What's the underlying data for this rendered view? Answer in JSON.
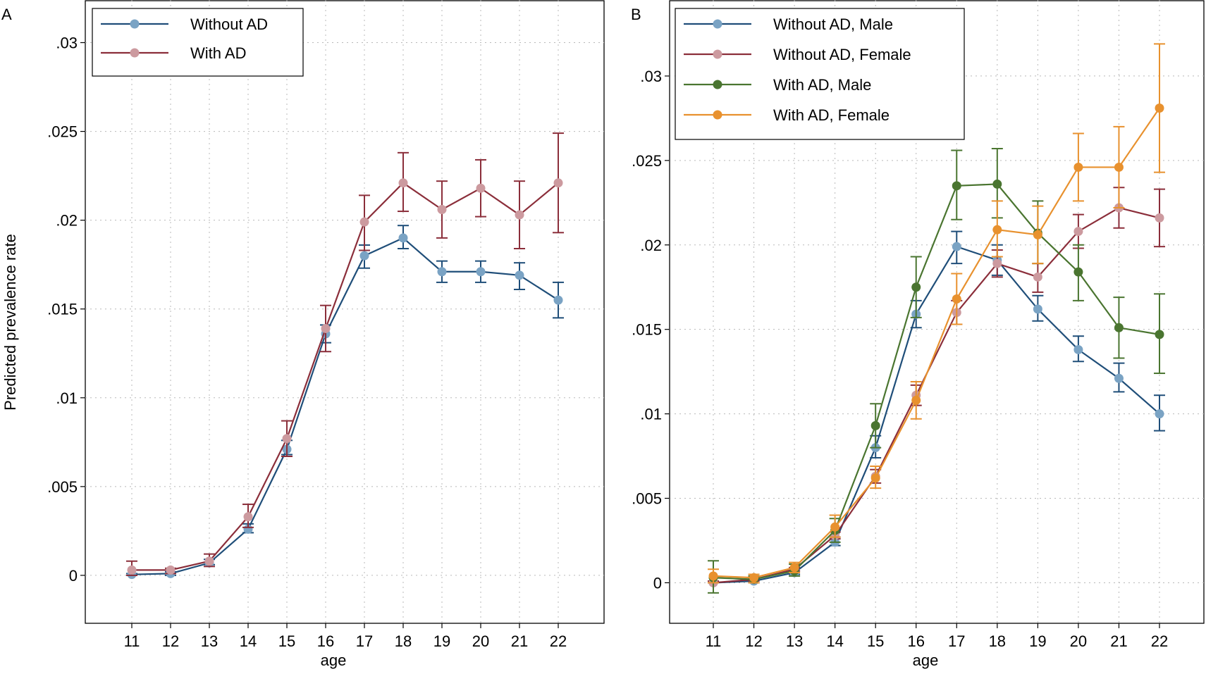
{
  "chart_data": [
    {
      "panel_label": "A",
      "type": "line",
      "xlabel": "age",
      "ylabel": "Predicted prevalence rate",
      "x": [
        11,
        12,
        13,
        14,
        15,
        16,
        17,
        18,
        19,
        20,
        21,
        22
      ],
      "xticks": [
        "11",
        "12",
        "13",
        "14",
        "15",
        "16",
        "17",
        "18",
        "19",
        "20",
        "21",
        "22"
      ],
      "yticks": [
        {
          "value": 0,
          "label": "0"
        },
        {
          "value": 0.005,
          "label": ".005"
        },
        {
          "value": 0.01,
          "label": ".01"
        },
        {
          "value": 0.015,
          "label": ".015"
        },
        {
          "value": 0.02,
          "label": ".02"
        },
        {
          "value": 0.025,
          "label": ".025"
        },
        {
          "value": 0.03,
          "label": ".03"
        }
      ],
      "ylim": [
        -0.0027,
        0.0324
      ],
      "xlim": [
        10,
        23
      ],
      "grid": true,
      "legend_position": "top-left",
      "series": [
        {
          "name": "Without AD",
          "line_color": "#1f4e79",
          "marker_color": "#7aa3c4",
          "values": [
            5e-05,
            0.0001,
            0.0007,
            0.0026,
            0.0071,
            0.0136,
            0.018,
            0.019,
            0.0171,
            0.0171,
            0.0169,
            0.0155
          ],
          "ci_low": [
            0.0,
            0.0,
            0.0006,
            0.0024,
            0.0068,
            0.0131,
            0.0173,
            0.0184,
            0.0165,
            0.0165,
            0.0161,
            0.0145
          ],
          "ci_high": [
            0.0001,
            0.0002,
            0.0009,
            0.0029,
            0.0076,
            0.0141,
            0.0186,
            0.0197,
            0.0177,
            0.0177,
            0.0176,
            0.0165
          ]
        },
        {
          "name": "With AD",
          "line_color": "#8b2e3a",
          "marker_color": "#cc9a9f",
          "values": [
            0.0003,
            0.0003,
            0.0008,
            0.0033,
            0.0077,
            0.0139,
            0.0199,
            0.0221,
            0.0206,
            0.0218,
            0.0203,
            0.0221
          ],
          "ci_low": [
            0.0,
            0.0001,
            0.0005,
            0.0027,
            0.0067,
            0.0126,
            0.0183,
            0.0205,
            0.019,
            0.0202,
            0.0184,
            0.0193
          ],
          "ci_high": [
            0.0008,
            0.0004,
            0.0012,
            0.004,
            0.0087,
            0.0152,
            0.0214,
            0.0238,
            0.0222,
            0.0234,
            0.0222,
            0.0249
          ]
        }
      ]
    },
    {
      "panel_label": "B",
      "type": "line",
      "xlabel": "age",
      "ylabel": "",
      "x": [
        11,
        12,
        13,
        14,
        15,
        16,
        17,
        18,
        19,
        20,
        21,
        22
      ],
      "xticks": [
        "11",
        "12",
        "13",
        "14",
        "15",
        "16",
        "17",
        "18",
        "19",
        "20",
        "21",
        "22"
      ],
      "yticks": [
        {
          "value": 0,
          "label": "0"
        },
        {
          "value": 0.005,
          "label": ".005"
        },
        {
          "value": 0.01,
          "label": ".01"
        },
        {
          "value": 0.015,
          "label": ".015"
        },
        {
          "value": 0.02,
          "label": ".02"
        },
        {
          "value": 0.025,
          "label": ".025"
        },
        {
          "value": 0.03,
          "label": ".03"
        }
      ],
      "ylim": [
        -0.0024,
        0.0345
      ],
      "xlim": [
        10,
        23
      ],
      "grid": true,
      "legend_position": "top-left",
      "series": [
        {
          "name": "Without AD, Male",
          "line_color": "#1f4e79",
          "marker_color": "#7aa3c4",
          "values": [
            0.0,
            0.0001,
            0.0006,
            0.0024,
            0.008,
            0.0159,
            0.0199,
            0.0191,
            0.0162,
            0.0138,
            0.0121,
            0.01
          ],
          "ci_low": [
            0.0,
            0.0,
            0.0005,
            0.0022,
            0.0074,
            0.0151,
            0.0189,
            0.0182,
            0.0155,
            0.0131,
            0.0113,
            0.009
          ],
          "ci_high": [
            0.0,
            0.0002,
            0.0007,
            0.0027,
            0.0087,
            0.0167,
            0.0208,
            0.02,
            0.017,
            0.0146,
            0.013,
            0.0111
          ]
        },
        {
          "name": "Without AD, Female",
          "line_color": "#8b2e3a",
          "marker_color": "#cc9a9f",
          "values": [
            0.0,
            0.0002,
            0.0008,
            0.0028,
            0.0063,
            0.0111,
            0.016,
            0.0189,
            0.0181,
            0.0208,
            0.0222,
            0.0216
          ],
          "ci_low": [
            0.0,
            0.0001,
            0.0007,
            0.0026,
            0.0059,
            0.0105,
            0.0153,
            0.0181,
            0.0172,
            0.0198,
            0.021,
            0.0199
          ],
          "ci_high": [
            0.0001,
            0.0003,
            0.0009,
            0.003,
            0.0067,
            0.0117,
            0.0167,
            0.0197,
            0.0189,
            0.0218,
            0.0234,
            0.0233
          ]
        },
        {
          "name": "With AD, Male",
          "line_color": "#4a7530",
          "marker_color": "#4a7530",
          "values": [
            0.0003,
            0.0002,
            0.0007,
            0.0031,
            0.0093,
            0.0175,
            0.0235,
            0.0236,
            0.0207,
            0.0184,
            0.0151,
            0.0147
          ],
          "ci_low": [
            -0.0006,
            0.0,
            0.0004,
            0.0024,
            0.008,
            0.0157,
            0.0215,
            0.0216,
            0.0189,
            0.0167,
            0.0133,
            0.0124
          ],
          "ci_high": [
            0.0013,
            0.0004,
            0.0011,
            0.0038,
            0.0106,
            0.0193,
            0.0256,
            0.0257,
            0.0226,
            0.02,
            0.0169,
            0.0171
          ]
        },
        {
          "name": "With AD, Female",
          "line_color": "#e8912e",
          "marker_color": "#e8912e",
          "values": [
            0.0004,
            0.0003,
            0.0009,
            0.0033,
            0.0062,
            0.0108,
            0.0168,
            0.0209,
            0.0206,
            0.0246,
            0.0246,
            0.0281
          ],
          "ci_low": [
            0.0,
            0.0,
            0.0006,
            0.0027,
            0.0056,
            0.0097,
            0.0153,
            0.0193,
            0.0189,
            0.0226,
            0.0222,
            0.0243
          ],
          "ci_high": [
            0.0008,
            0.0005,
            0.0012,
            0.004,
            0.0069,
            0.0119,
            0.0183,
            0.0226,
            0.0223,
            0.0266,
            0.027,
            0.0319
          ]
        }
      ]
    }
  ]
}
